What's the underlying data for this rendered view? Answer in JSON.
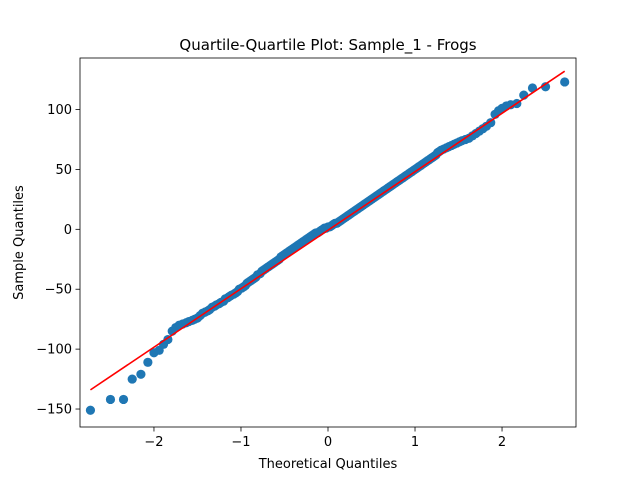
{
  "chart_data": {
    "type": "scatter",
    "title": "Quartile-Quartile Plot: Sample_1 - Frogs",
    "xlabel": "Theoretical Quantiles",
    "ylabel": "Sample Quantiles",
    "xlim": [
      -2.85,
      2.85
    ],
    "ylim": [
      -165,
      143
    ],
    "x_ticks": [
      -2,
      -1,
      0,
      1,
      2
    ],
    "x_tick_labels": [
      "−2",
      "−1",
      "0",
      "1",
      "2"
    ],
    "y_ticks": [
      -150,
      -100,
      -50,
      0,
      50,
      100
    ],
    "y_tick_labels": [
      "−150",
      "−100",
      "−50",
      "0",
      "50",
      "100"
    ],
    "grid": false,
    "colors": {
      "points": "#1f77b4",
      "line": "#ff0000"
    },
    "series": [
      {
        "values": [
          [
            -2.73,
            -151
          ],
          [
            -2.5,
            -142
          ],
          [
            -2.35,
            -142
          ],
          [
            -2.25,
            -125
          ],
          [
            -2.15,
            -121
          ],
          [
            -2.07,
            -111
          ],
          [
            -2.0,
            -103
          ],
          [
            -1.94,
            -101
          ],
          [
            -1.89,
            -96
          ],
          [
            -1.84,
            -92
          ],
          [
            -1.79,
            -85
          ],
          [
            -1.75,
            -82
          ],
          [
            -1.71,
            -80
          ],
          [
            -1.67,
            -79
          ],
          [
            -1.63,
            -78
          ],
          [
            -1.6,
            -77
          ],
          [
            -1.56,
            -76
          ],
          [
            -1.53,
            -75
          ],
          [
            -1.5,
            -74
          ],
          [
            -1.47,
            -72
          ],
          [
            -1.44,
            -70
          ],
          [
            -1.41,
            -69
          ],
          [
            -1.38,
            -68
          ],
          [
            -1.36,
            -67
          ],
          [
            -1.33,
            -65
          ],
          [
            -1.3,
            -64
          ],
          [
            -1.28,
            -63
          ],
          [
            -1.25,
            -62
          ],
          [
            -1.23,
            -61
          ],
          [
            -1.2,
            -60
          ],
          [
            -1.18,
            -58
          ],
          [
            -1.15,
            -57
          ],
          [
            -1.13,
            -56
          ],
          [
            -1.11,
            -55
          ],
          [
            -1.08,
            -54
          ],
          [
            -1.06,
            -53
          ],
          [
            -1.04,
            -52
          ],
          [
            -1.02,
            -50
          ],
          [
            -0.99,
            -49
          ],
          [
            -0.97,
            -48
          ],
          [
            -0.95,
            -47
          ],
          [
            -0.93,
            -45
          ],
          [
            -0.91,
            -44
          ],
          [
            -0.89,
            -43
          ],
          [
            -0.87,
            -42
          ],
          [
            -0.85,
            -41
          ],
          [
            -0.83,
            -40
          ],
          [
            -0.81,
            -38
          ],
          [
            -0.78,
            -37
          ],
          [
            -0.76,
            -35
          ],
          [
            -0.74,
            -34
          ],
          [
            -0.72,
            -33
          ],
          [
            -0.7,
            -32
          ],
          [
            -0.68,
            -31
          ],
          [
            -0.66,
            -30
          ],
          [
            -0.64,
            -29
          ],
          [
            -0.62,
            -28
          ],
          [
            -0.6,
            -27
          ],
          [
            -0.58,
            -26
          ],
          [
            -0.56,
            -25
          ],
          [
            -0.54,
            -23
          ],
          [
            -0.52,
            -22
          ],
          [
            -0.5,
            -21
          ],
          [
            -0.48,
            -20
          ],
          [
            -0.46,
            -19
          ],
          [
            -0.44,
            -18
          ],
          [
            -0.42,
            -17
          ],
          [
            -0.4,
            -16
          ],
          [
            -0.38,
            -15
          ],
          [
            -0.36,
            -14
          ],
          [
            -0.34,
            -13
          ],
          [
            -0.32,
            -12
          ],
          [
            -0.3,
            -11
          ],
          [
            -0.28,
            -10
          ],
          [
            -0.26,
            -9
          ],
          [
            -0.24,
            -8
          ],
          [
            -0.22,
            -7
          ],
          [
            -0.2,
            -6
          ],
          [
            -0.18,
            -5
          ],
          [
            -0.16,
            -4
          ],
          [
            -0.14,
            -3
          ],
          [
            -0.12,
            -3
          ],
          [
            -0.1,
            -2
          ],
          [
            -0.08,
            -1
          ],
          [
            -0.06,
            0
          ],
          [
            -0.04,
            1
          ],
          [
            -0.02,
            1
          ],
          [
            0.0,
            2
          ],
          [
            0.02,
            2
          ],
          [
            0.04,
            3
          ],
          [
            0.06,
            4
          ],
          [
            0.08,
            5
          ],
          [
            0.1,
            5
          ],
          [
            0.12,
            6
          ],
          [
            0.14,
            7
          ],
          [
            0.16,
            8
          ],
          [
            0.18,
            9
          ],
          [
            0.2,
            10
          ],
          [
            0.22,
            11
          ],
          [
            0.24,
            12
          ],
          [
            0.26,
            13
          ],
          [
            0.28,
            14
          ],
          [
            0.3,
            15
          ],
          [
            0.32,
            16
          ],
          [
            0.34,
            17
          ],
          [
            0.36,
            18
          ],
          [
            0.38,
            19
          ],
          [
            0.4,
            20
          ],
          [
            0.42,
            21
          ],
          [
            0.44,
            22
          ],
          [
            0.46,
            23
          ],
          [
            0.48,
            24
          ],
          [
            0.5,
            25
          ],
          [
            0.52,
            26
          ],
          [
            0.54,
            27
          ],
          [
            0.56,
            28
          ],
          [
            0.58,
            29
          ],
          [
            0.6,
            30
          ],
          [
            0.62,
            31
          ],
          [
            0.64,
            32
          ],
          [
            0.66,
            33
          ],
          [
            0.68,
            34
          ],
          [
            0.7,
            35
          ],
          [
            0.72,
            36
          ],
          [
            0.74,
            37
          ],
          [
            0.76,
            38
          ],
          [
            0.78,
            39
          ],
          [
            0.8,
            40
          ],
          [
            0.82,
            41
          ],
          [
            0.84,
            42
          ],
          [
            0.86,
            43
          ],
          [
            0.88,
            44
          ],
          [
            0.9,
            45
          ],
          [
            0.92,
            46
          ],
          [
            0.94,
            47
          ],
          [
            0.96,
            48
          ],
          [
            0.98,
            49
          ],
          [
            1.0,
            50
          ],
          [
            1.02,
            51
          ],
          [
            1.04,
            52
          ],
          [
            1.06,
            53
          ],
          [
            1.08,
            54
          ],
          [
            1.1,
            55
          ],
          [
            1.12,
            56
          ],
          [
            1.14,
            57
          ],
          [
            1.16,
            58
          ],
          [
            1.18,
            59
          ],
          [
            1.2,
            60
          ],
          [
            1.22,
            61
          ],
          [
            1.24,
            62
          ],
          [
            1.26,
            64
          ],
          [
            1.28,
            65
          ],
          [
            1.3,
            66
          ],
          [
            1.33,
            67
          ],
          [
            1.36,
            68
          ],
          [
            1.39,
            69
          ],
          [
            1.42,
            70
          ],
          [
            1.45,
            71
          ],
          [
            1.48,
            72
          ],
          [
            1.51,
            73
          ],
          [
            1.54,
            74
          ],
          [
            1.58,
            75
          ],
          [
            1.62,
            76
          ],
          [
            1.66,
            78
          ],
          [
            1.7,
            80
          ],
          [
            1.74,
            82
          ],
          [
            1.78,
            84
          ],
          [
            1.82,
            86
          ],
          [
            1.87,
            89
          ],
          [
            1.92,
            96
          ],
          [
            1.96,
            99
          ],
          [
            2.0,
            101
          ],
          [
            2.05,
            103
          ],
          [
            2.1,
            104
          ],
          [
            2.17,
            105
          ],
          [
            2.25,
            112
          ],
          [
            2.35,
            118
          ],
          [
            2.5,
            119
          ],
          [
            2.72,
            123
          ]
        ]
      }
    ],
    "fit_line": {
      "x": [
        -2.73,
        2.72
      ],
      "y": [
        -134,
        132
      ]
    }
  }
}
